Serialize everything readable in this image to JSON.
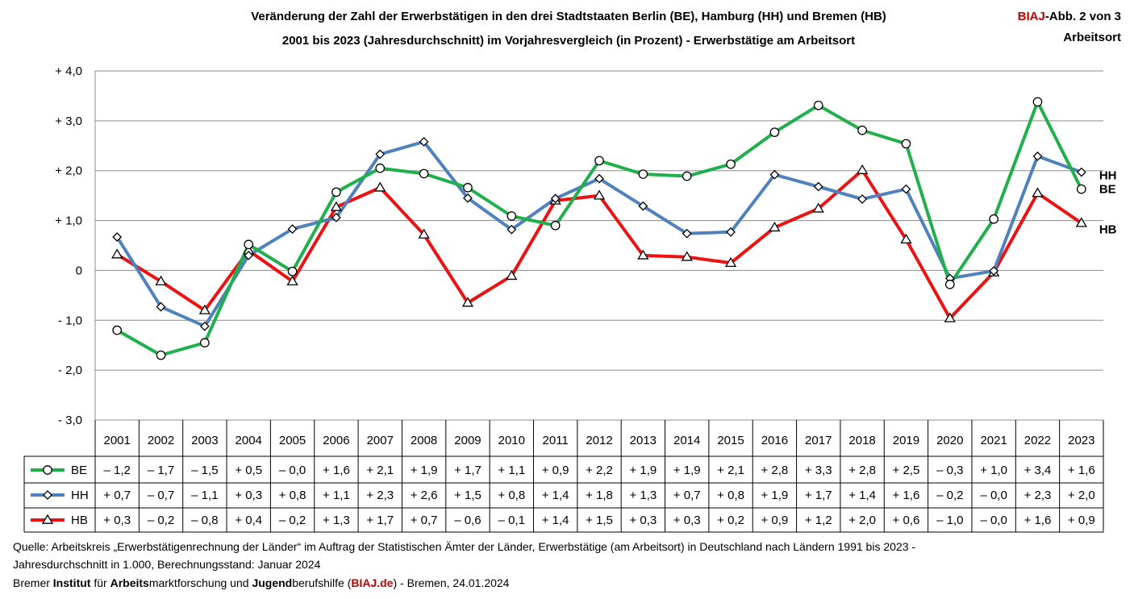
{
  "title": {
    "line1": "Veränderung der Zahl der Erwerbstätigen in den drei Stadtstaaten Berlin (BE), Hamburg (HH) und Bremen (HB)",
    "line2": "2001 bis 2023 (Jahresdurchschnitt) im Vorjahresvergleich (in Prozent) - Erwerbstätige am Arbeitsort"
  },
  "badge": {
    "brand": "BIAJ",
    "suffix": "-Abb. 2 von 3",
    "line2": "Arbeitsort"
  },
  "chart_data": {
    "type": "line",
    "categories": [
      "2001",
      "2002",
      "2003",
      "2004",
      "2005",
      "2006",
      "2007",
      "2008",
      "2009",
      "2010",
      "2011",
      "2012",
      "2013",
      "2014",
      "2015",
      "2016",
      "2017",
      "2018",
      "2019",
      "2020",
      "2021",
      "2022",
      "2023"
    ],
    "ylim": [
      -3.0,
      4.0
    ],
    "yticks": [
      4,
      3,
      2,
      1,
      0,
      -1,
      -2,
      -3
    ],
    "ytick_labels": [
      "+ 4,0",
      "+ 3,0",
      "+ 2,0",
      "+ 1,0",
      "0",
      "- 1,0",
      "- 2,0",
      "- 3,0"
    ],
    "grid": true,
    "series": [
      {
        "name": "BE",
        "color": "#1fb04c",
        "marker": "circle",
        "end_label": "BE",
        "values": [
          -1.2,
          -1.7,
          -1.45,
          0.52,
          -0.02,
          1.57,
          2.05,
          1.94,
          1.66,
          1.09,
          0.9,
          2.2,
          1.93,
          1.89,
          2.13,
          2.77,
          3.31,
          2.81,
          2.54,
          -0.28,
          1.03,
          3.38,
          1.63
        ],
        "table": [
          "– 1,2",
          "– 1,7",
          "– 1,5",
          "+ 0,5",
          "– 0,0",
          "+ 1,6",
          "+ 2,1",
          "+ 1,9",
          "+ 1,7",
          "+ 1,1",
          "+ 0,9",
          "+ 2,2",
          "+ 1,9",
          "+ 1,9",
          "+ 2,1",
          "+ 2,8",
          "+ 3,3",
          "+ 2,8",
          "+ 2,5",
          "– 0,3",
          "+ 1,0",
          "+ 3,4",
          "+ 1,6"
        ]
      },
      {
        "name": "HH",
        "color": "#4f81bd",
        "marker": "diamond",
        "end_label": "HH",
        "values": [
          0.67,
          -0.73,
          -1.12,
          0.3,
          0.83,
          1.06,
          2.33,
          2.58,
          1.45,
          0.82,
          1.44,
          1.84,
          1.29,
          0.74,
          0.77,
          1.92,
          1.68,
          1.43,
          1.63,
          -0.16,
          -0.01,
          2.29,
          1.97
        ],
        "table": [
          "+ 0,7",
          "– 0,7",
          "– 1,1",
          "+ 0,3",
          "+ 0,8",
          "+ 1,1",
          "+ 2,3",
          "+ 2,6",
          "+ 1,5",
          "+ 0,8",
          "+ 1,4",
          "+ 1,8",
          "+ 1,3",
          "+ 0,7",
          "+ 0,8",
          "+ 1,9",
          "+ 1,7",
          "+ 1,4",
          "+ 1,6",
          "– 0,2",
          "– 0,0",
          "+ 2,3",
          "+ 2,0"
        ]
      },
      {
        "name": "HB",
        "color": "#ee1111",
        "marker": "triangle",
        "end_label": "HB",
        "values": [
          0.32,
          -0.22,
          -0.8,
          0.4,
          -0.22,
          1.27,
          1.66,
          0.72,
          -0.65,
          -0.11,
          1.4,
          1.5,
          0.3,
          0.27,
          0.15,
          0.86,
          1.24,
          2.01,
          0.62,
          -0.96,
          -0.04,
          1.55,
          0.95
        ],
        "table": [
          "+ 0,3",
          "– 0,2",
          "– 0,8",
          "+ 0,4",
          "– 0,2",
          "+ 1,3",
          "+ 1,7",
          "+ 0,7",
          "– 0,6",
          "– 0,1",
          "+ 1,4",
          "+ 1,5",
          "+ 0,3",
          "+ 0,3",
          "+ 0,2",
          "+ 0,9",
          "+ 1,2",
          "+ 2,0",
          "+ 0,6",
          "– 1,0",
          "– 0,0",
          "+ 1,6",
          "+ 0,9"
        ]
      }
    ]
  },
  "footer": {
    "line1": "Quelle: Arbeitskreis „Erwerbstätigenrechnung der Länder“ im Auftrag der Statistischen Ämter der Länder, Erwerbstätige (am Arbeitsort) in Deutschland nach Ländern 1991 bis 2023 -",
    "line2": "Jahresdurchschnitt in 1.000, Berechnungsstand: Januar 2024",
    "line3": {
      "w1": "Bremer ",
      "b1": "Institut",
      "w2": " für ",
      "b2": "Arbeits",
      "w3": "marktforschung und ",
      "b3": "Jugend",
      "w4": "berufshilfe (",
      "brand": "BIAJ.de",
      "w5": ") - Bremen, 24.01.2024"
    }
  }
}
